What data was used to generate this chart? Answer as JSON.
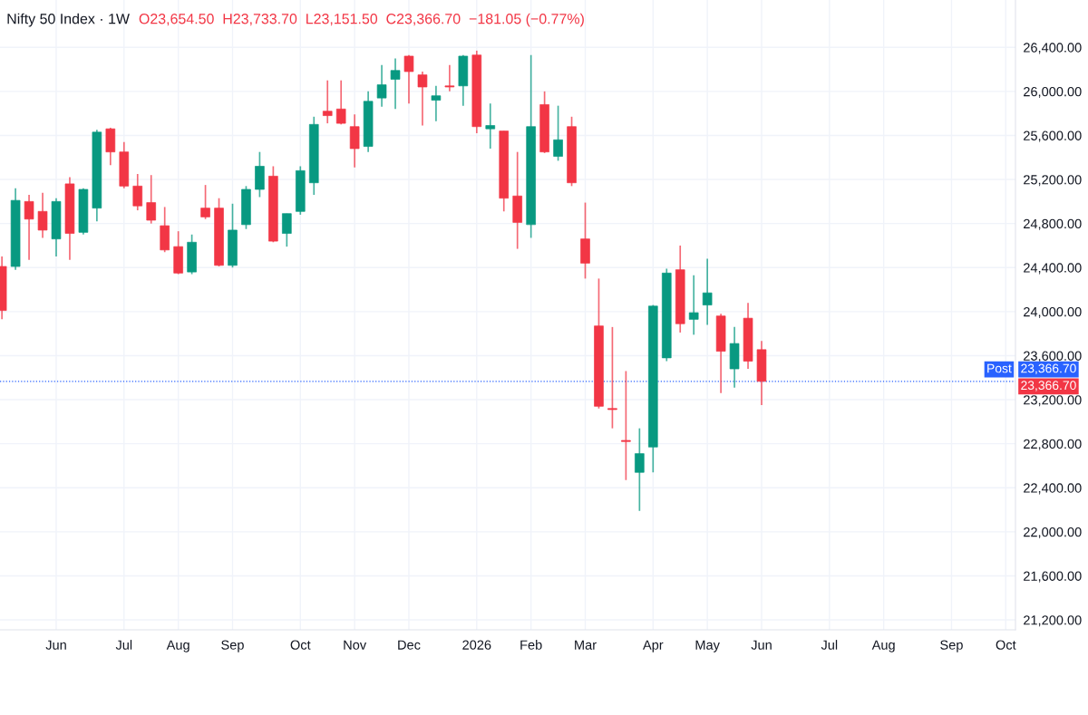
{
  "chart_data": {
    "type": "candlestick",
    "title": "Nifty 50 Index · 1W",
    "subtitle": "O23,654.50  H23,733.70  L23,151.50  C23,366.70  −181.05 (−0.77%)",
    "x": [
      "2025-05-05",
      "2025-05-12",
      "2025-05-19",
      "2025-05-26",
      "2025-06-02",
      "2025-06-09",
      "2025-06-16",
      "2025-06-23",
      "2025-06-30",
      "2025-07-07",
      "2025-07-14",
      "2025-07-21",
      "2025-07-28",
      "2025-08-04",
      "2025-08-11",
      "2025-08-18",
      "2025-08-25",
      "2025-09-01",
      "2025-09-08",
      "2025-09-15",
      "2025-09-22",
      "2025-09-29",
      "2025-10-06",
      "2025-10-13",
      "2025-10-20",
      "2025-10-27",
      "2025-11-03",
      "2025-11-10",
      "2025-11-17",
      "2025-11-24",
      "2025-12-01",
      "2025-12-08",
      "2025-12-15",
      "2025-12-22",
      "2025-12-29",
      "2026-01-05",
      "2026-01-12",
      "2026-01-19",
      "2026-01-26",
      "2026-02-02",
      "2026-02-09",
      "2026-02-16",
      "2026-02-23",
      "2026-03-02",
      "2026-03-09",
      "2026-03-16",
      "2026-03-23",
      "2026-03-30",
      "2026-04-06",
      "2026-04-13",
      "2026-04-20",
      "2026-04-27",
      "2026-05-04",
      "2026-05-11",
      "2026-05-18",
      "2026-05-25",
      "2026-06-01"
    ],
    "ohlc": [
      [
        24410,
        24500,
        23930,
        24010
      ],
      [
        24410,
        25120,
        24380,
        25010
      ],
      [
        25000,
        25060,
        24470,
        24840
      ],
      [
        24910,
        25080,
        24670,
        24740
      ],
      [
        24660,
        25030,
        24500,
        25000
      ],
      [
        25160,
        25220,
        24470,
        24710
      ],
      [
        24720,
        25120,
        24700,
        25110
      ],
      [
        24940,
        25650,
        24820,
        25630
      ],
      [
        25660,
        25670,
        25330,
        25450
      ],
      [
        25450,
        25540,
        25120,
        25140
      ],
      [
        25140,
        25250,
        24920,
        24960
      ],
      [
        24990,
        25240,
        24800,
        24830
      ],
      [
        24780,
        24950,
        24540,
        24560
      ],
      [
        24590,
        24730,
        24340,
        24350
      ],
      [
        24360,
        24700,
        24340,
        24630
      ],
      [
        24940,
        25150,
        24840,
        24860
      ],
      [
        24940,
        25030,
        24410,
        24420
      ],
      [
        24420,
        24980,
        24400,
        24740
      ],
      [
        24790,
        25140,
        24750,
        25110
      ],
      [
        25110,
        25450,
        25040,
        25320
      ],
      [
        25230,
        25320,
        24630,
        24640
      ],
      [
        24710,
        24890,
        24590,
        24890
      ],
      [
        24910,
        25320,
        24880,
        25280
      ],
      [
        25170,
        25770,
        25060,
        25700
      ],
      [
        25820,
        26100,
        25710,
        25780
      ],
      [
        25840,
        26100,
        25700,
        25710
      ],
      [
        25680,
        25790,
        25310,
        25480
      ],
      [
        25500,
        26000,
        25450,
        25910
      ],
      [
        25940,
        26240,
        25860,
        26060
      ],
      [
        26110,
        26300,
        25840,
        26190
      ],
      [
        26320,
        26330,
        25890,
        26180
      ],
      [
        26150,
        26180,
        25690,
        26040
      ],
      [
        25920,
        26050,
        25730,
        25960
      ],
      [
        26050,
        26240,
        26000,
        26040
      ],
      [
        26050,
        26330,
        25870,
        26320
      ],
      [
        26330,
        26370,
        25620,
        25680
      ],
      [
        25660,
        25890,
        25480,
        25690
      ],
      [
        25640,
        25640,
        24910,
        25030
      ],
      [
        25050,
        25450,
        24570,
        24810
      ],
      [
        24790,
        26330,
        24670,
        25680
      ],
      [
        25880,
        26000,
        25440,
        25450
      ],
      [
        25410,
        25870,
        25370,
        25560
      ],
      [
        25680,
        25770,
        25140,
        25170
      ],
      [
        24660,
        24990,
        24300,
        24440
      ],
      [
        23870,
        24300,
        23120,
        23140
      ],
      [
        23120,
        23860,
        22940,
        23110
      ],
      [
        22830,
        23460,
        22470,
        22820
      ],
      [
        22540,
        22940,
        22190,
        22710
      ],
      [
        22770,
        24060,
        22540,
        24050
      ],
      [
        23580,
        24390,
        23550,
        24350
      ],
      [
        24380,
        24600,
        23810,
        23890
      ],
      [
        23930,
        24330,
        23790,
        23990
      ],
      [
        24060,
        24480,
        23880,
        24170
      ],
      [
        23960,
        23980,
        23260,
        23640
      ],
      [
        23480,
        23860,
        23310,
        23710
      ],
      [
        23940,
        24080,
        23480,
        23550
      ],
      [
        23654.5,
        23733.7,
        23151.5,
        23366.7
      ]
    ],
    "colors": [
      "#f23645",
      "#089981",
      "#f23645",
      "#f23645",
      "#089981",
      "#f23645",
      "#089981",
      "#089981",
      "#f23645",
      "#f23645",
      "#f23645",
      "#f23645",
      "#f23645",
      "#f23645",
      "#089981",
      "#f23645",
      "#f23645",
      "#089981",
      "#089981",
      "#089981",
      "#f23645",
      "#089981",
      "#089981",
      "#089981",
      "#f23645",
      "#f23645",
      "#f23645",
      "#089981",
      "#089981",
      "#089981",
      "#f23645",
      "#f23645",
      "#089981",
      "#f23645",
      "#089981",
      "#f23645",
      "#089981",
      "#f23645",
      "#f23645",
      "#089981",
      "#f23645",
      "#089981",
      "#f23645",
      "#f23645",
      "#f23645",
      "#f23645",
      "#f23645",
      "#089981",
      "#089981",
      "#089981",
      "#f23645",
      "#089981",
      "#089981",
      "#f23645",
      "#089981",
      "#f23645",
      "#f23645"
    ],
    "xlim": [
      "2025-05-04",
      "2026-10-10"
    ],
    "xticks": [
      {
        "value": "2025-06-02",
        "label": "Jun"
      },
      {
        "value": "2025-07-07",
        "label": "Jul"
      },
      {
        "value": "2025-08-04",
        "label": "Aug"
      },
      {
        "value": "2025-09-01",
        "label": "Sep"
      },
      {
        "value": "2025-10-06",
        "label": "Oct"
      },
      {
        "value": "2025-11-03",
        "label": "Nov"
      },
      {
        "value": "2025-12-01",
        "label": "Dec"
      },
      {
        "value": "2026-01-05",
        "label": "2026"
      },
      {
        "value": "2026-02-02",
        "label": "Feb"
      },
      {
        "value": "2026-03-02",
        "label": "Mar"
      },
      {
        "value": "2026-04-06",
        "label": "Apr"
      },
      {
        "value": "2026-05-04",
        "label": "May"
      },
      {
        "value": "2026-06-01",
        "label": "Jun"
      },
      {
        "value": "2026-07-06",
        "label": "Jul"
      },
      {
        "value": "2026-08-03",
        "label": "Aug"
      },
      {
        "value": "2026-09-07",
        "label": "Sep"
      },
      {
        "value": "2026-10-05",
        "label": "Oct"
      }
    ],
    "ylim": [
      21110,
      26830
    ],
    "yticks": [
      {
        "value": 21200,
        "label": "21,200.00"
      },
      {
        "value": 21600,
        "label": "21,600.00"
      },
      {
        "value": 22000,
        "label": "22,000.00"
      },
      {
        "value": 22400,
        "label": "22,400.00"
      },
      {
        "value": 22800,
        "label": "22,800.00"
      },
      {
        "value": 23200,
        "label": "23,200.00"
      },
      {
        "value": 23600,
        "label": "23,600.00"
      },
      {
        "value": 24000,
        "label": "24,000.00"
      },
      {
        "value": 24400,
        "label": "24,400.00"
      },
      {
        "value": 24800,
        "label": "24,800.00"
      },
      {
        "value": 25200,
        "label": "25,200.00"
      },
      {
        "value": 25600,
        "label": "25,600.00"
      },
      {
        "value": 26000,
        "label": "26,000.00"
      },
      {
        "value": 26400,
        "label": "26,400.00"
      }
    ],
    "ref_lines": [
      {
        "axis": "y",
        "value": 23366.7,
        "label": "23,366.70",
        "color": "#2962ff",
        "line_style": "dotted"
      }
    ],
    "annotations": [
      {
        "text": "Post",
        "y": 23366.7
      },
      "23,366.70"
    ],
    "grid": true
  }
}
